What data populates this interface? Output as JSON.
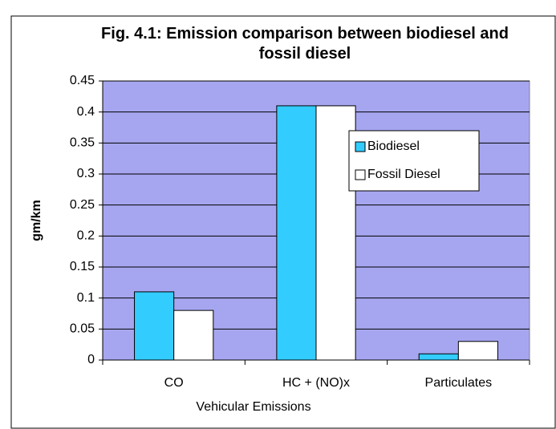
{
  "chart_data": {
    "type": "bar",
    "title": "Fig. 4.1: Emission comparison between biodiesel and fossil diesel",
    "x_label": "Vehicular Emissions",
    "y_label": "gm/km",
    "categories": [
      "CO",
      "HC + (NO)x",
      "Particulates"
    ],
    "series": [
      {
        "name": "Biodiesel",
        "color": "#33ccff",
        "values": [
          0.11,
          0.41,
          0.01
        ]
      },
      {
        "name": "Fossil Diesel",
        "color": "#ffffff",
        "values": [
          0.08,
          0.41,
          0.03
        ]
      }
    ],
    "ylim": [
      0,
      0.45
    ],
    "yticks": [
      0,
      0.05,
      0.1,
      0.15,
      0.2,
      0.25,
      0.3,
      0.35,
      0.4,
      0.45
    ],
    "grid": true,
    "legend": "right"
  }
}
